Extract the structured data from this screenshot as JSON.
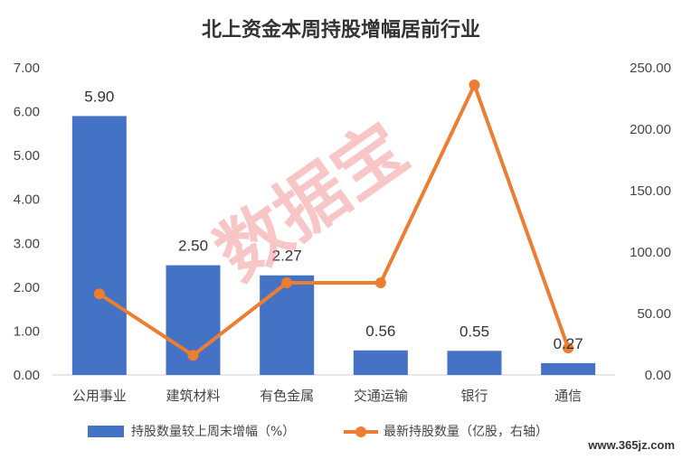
{
  "chart_data": {
    "type": "bar",
    "title": "北上资金本周持股增幅居前行业",
    "categories": [
      "公用事业",
      "建筑材料",
      "有色金属",
      "交通运输",
      "银行",
      "通信"
    ],
    "series": [
      {
        "name": "持股数量较上周末增幅（%）",
        "type": "bar",
        "axis": "left",
        "color": "#4472c4",
        "values": [
          5.9,
          2.5,
          2.27,
          0.56,
          0.55,
          0.27
        ],
        "labels": [
          "5.90",
          "2.50",
          "2.27",
          "0.56",
          "0.55",
          "0.27"
        ]
      },
      {
        "name": "最新持股数量（亿股，右轴）",
        "type": "line",
        "axis": "right",
        "color": "#ed7d31",
        "values": [
          66,
          16,
          75,
          75,
          236,
          22
        ]
      }
    ],
    "y_left": {
      "min": 0,
      "max": 7,
      "ticks": [
        "0.00",
        "1.00",
        "2.00",
        "3.00",
        "4.00",
        "5.00",
        "6.00",
        "7.00"
      ]
    },
    "y_right": {
      "min": 0,
      "max": 250,
      "ticks": [
        "0.00",
        "50.00",
        "100.00",
        "150.00",
        "200.00",
        "250.00"
      ]
    },
    "legend_position": "bottom",
    "grid": false
  },
  "watermark": {
    "text": "数据宝"
  },
  "site_mark": {
    "text": "www.365jz.com"
  }
}
